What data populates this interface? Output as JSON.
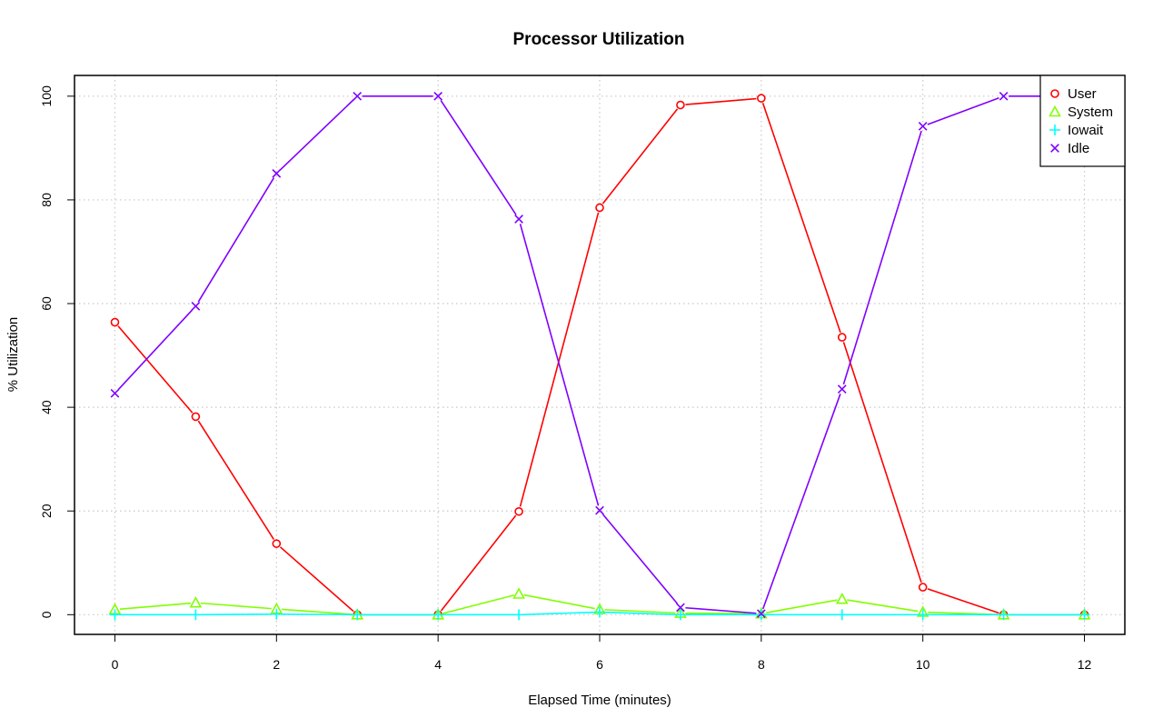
{
  "chart_data": {
    "type": "line",
    "title": "Processor Utilization",
    "xlabel": "Elapsed Time (minutes)",
    "ylabel": "% Utilization",
    "x": [
      0,
      1,
      2,
      3,
      4,
      5,
      6,
      7,
      8,
      9,
      10,
      11,
      12
    ],
    "xlim": [
      -0.5,
      12.5
    ],
    "ylim": [
      -3.8,
      104
    ],
    "xticks": [
      0,
      2,
      4,
      6,
      8,
      10,
      12
    ],
    "yticks": [
      0,
      20,
      40,
      60,
      80,
      100
    ],
    "grid": true,
    "legend_position": "top-right",
    "series": [
      {
        "name": "User",
        "color": "#ff0000",
        "marker": "circle",
        "values": [
          56.4,
          38.2,
          13.7,
          0,
          0,
          19.9,
          78.5,
          98.3,
          99.6,
          53.5,
          5.3,
          0,
          0
        ]
      },
      {
        "name": "System",
        "color": "#80ff00",
        "marker": "triangle",
        "values": [
          1.0,
          2.3,
          1.1,
          0,
          0,
          4.0,
          1.0,
          0.3,
          0.2,
          3.0,
          0.5,
          0,
          0
        ]
      },
      {
        "name": "Iowait",
        "color": "#00ffff",
        "marker": "plus",
        "values": [
          0,
          0,
          0.1,
          0,
          0,
          0,
          0.5,
          0,
          0,
          0,
          0,
          0,
          0
        ]
      },
      {
        "name": "Idle",
        "color": "#8000ff",
        "marker": "x",
        "values": [
          42.7,
          59.5,
          85.1,
          100,
          100,
          76.3,
          20.1,
          1.4,
          0.2,
          43.5,
          94.2,
          100,
          100
        ]
      }
    ]
  }
}
